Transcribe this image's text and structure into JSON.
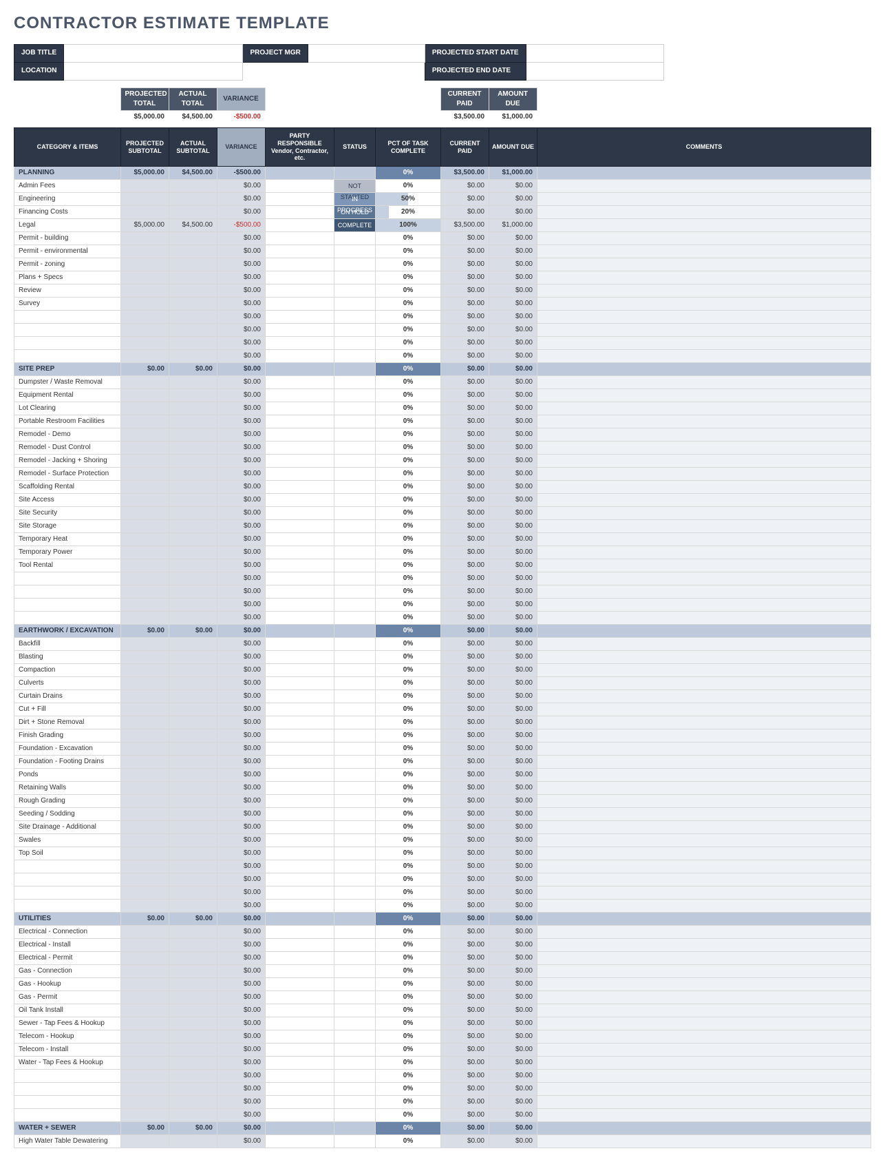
{
  "title": "CONTRACTOR ESTIMATE TEMPLATE",
  "info_labels": {
    "job_title": "JOB TITLE",
    "location": "LOCATION",
    "project_mgr": "PROJECT MGR",
    "start_date": "PROJECTED START DATE",
    "end_date": "PROJECTED END DATE"
  },
  "info_values": {
    "job_title": "",
    "location": "",
    "project_mgr": "",
    "start_date": "",
    "end_date": ""
  },
  "summary_headers": {
    "projected_total": "PROJECTED TOTAL",
    "actual_total": "ACTUAL TOTAL",
    "variance": "VARIANCE",
    "current_paid": "CURRENT PAID",
    "amount_due": "AMOUNT DUE"
  },
  "summary_values": {
    "projected_total": "$5,000.00",
    "actual_total": "$4,500.00",
    "variance": "-$500.00",
    "current_paid": "$3,500.00",
    "amount_due": "$1,000.00"
  },
  "columns": {
    "category": "CATEGORY & ITEMS",
    "proj_sub": "PROJECTED SUBTOTAL",
    "act_sub": "ACTUAL SUBTOTAL",
    "variance": "VARIANCE",
    "party": "PARTY RESPONSIBLE Vendor, Contractor, etc.",
    "status": "STATUS",
    "pct": "PCT OF TASK COMPLETE",
    "paid": "CURRENT PAID",
    "due": "AMOUNT DUE",
    "comments": "COMMENTS"
  },
  "colors": {
    "header_dark": "#2d3748",
    "header_mid": "#4a5568",
    "header_light": "#a0aec0",
    "cat_row": "#becadb",
    "cat_pct": "#6b85a8",
    "shade": "#d8dde6",
    "comments": "#eef1f6",
    "border": "#d8d8d8",
    "neg": "#c53030"
  },
  "sections": [
    {
      "name": "PLANNING",
      "proj": "$5,000.00",
      "act": "$4,500.00",
      "var": "-$500.00",
      "pct": "0%",
      "paid": "$3,500.00",
      "due": "$1,000.00",
      "items": [
        {
          "name": "Admin Fees",
          "var": "$0.00",
          "status": "NOT STARTED",
          "pct": "0%",
          "pct_val": 0,
          "paid": "$0.00",
          "due": "$0.00"
        },
        {
          "name": "Engineering",
          "var": "$0.00",
          "status": "IN PROGRESS",
          "pct": "50%",
          "pct_val": 50,
          "paid": "$0.00",
          "due": "$0.00"
        },
        {
          "name": "Financing Costs",
          "var": "$0.00",
          "status": "ON HOLD",
          "pct": "20%",
          "pct_val": 20,
          "paid": "$0.00",
          "due": "$0.00"
        },
        {
          "name": "Legal",
          "proj": "$5,000.00",
          "act": "$4,500.00",
          "var": "-$500.00",
          "status": "COMPLETE",
          "pct": "100%",
          "pct_val": 100,
          "paid": "$3,500.00",
          "due": "$1,000.00"
        },
        {
          "name": "Permit - building",
          "var": "$0.00",
          "pct": "0%",
          "paid": "$0.00",
          "due": "$0.00"
        },
        {
          "name": "Permit - environmental",
          "var": "$0.00",
          "pct": "0%",
          "paid": "$0.00",
          "due": "$0.00"
        },
        {
          "name": "Permit - zoning",
          "var": "$0.00",
          "pct": "0%",
          "paid": "$0.00",
          "due": "$0.00"
        },
        {
          "name": "Plans + Specs",
          "var": "$0.00",
          "pct": "0%",
          "paid": "$0.00",
          "due": "$0.00"
        },
        {
          "name": "Review",
          "var": "$0.00",
          "pct": "0%",
          "paid": "$0.00",
          "due": "$0.00"
        },
        {
          "name": "Survey",
          "var": "$0.00",
          "pct": "0%",
          "paid": "$0.00",
          "due": "$0.00"
        },
        {
          "name": "",
          "var": "$0.00",
          "pct": "0%",
          "paid": "$0.00",
          "due": "$0.00"
        },
        {
          "name": "",
          "var": "$0.00",
          "pct": "0%",
          "paid": "$0.00",
          "due": "$0.00"
        },
        {
          "name": "",
          "var": "$0.00",
          "pct": "0%",
          "paid": "$0.00",
          "due": "$0.00"
        },
        {
          "name": "",
          "var": "$0.00",
          "pct": "0%",
          "paid": "$0.00",
          "due": "$0.00"
        }
      ]
    },
    {
      "name": "SITE PREP",
      "proj": "$0.00",
      "act": "$0.00",
      "var": "$0.00",
      "pct": "0%",
      "paid": "$0.00",
      "due": "$0.00",
      "items": [
        {
          "name": "Dumpster / Waste Removal",
          "var": "$0.00",
          "pct": "0%",
          "paid": "$0.00",
          "due": "$0.00"
        },
        {
          "name": "Equipment Rental",
          "var": "$0.00",
          "pct": "0%",
          "paid": "$0.00",
          "due": "$0.00"
        },
        {
          "name": "Lot Clearing",
          "var": "$0.00",
          "pct": "0%",
          "paid": "$0.00",
          "due": "$0.00"
        },
        {
          "name": "Portable Restroom Facilities",
          "var": "$0.00",
          "pct": "0%",
          "paid": "$0.00",
          "due": "$0.00"
        },
        {
          "name": "Remodel - Demo",
          "var": "$0.00",
          "pct": "0%",
          "paid": "$0.00",
          "due": "$0.00"
        },
        {
          "name": "Remodel - Dust Control",
          "var": "$0.00",
          "pct": "0%",
          "paid": "$0.00",
          "due": "$0.00"
        },
        {
          "name": "Remodel - Jacking + Shoring",
          "var": "$0.00",
          "pct": "0%",
          "paid": "$0.00",
          "due": "$0.00"
        },
        {
          "name": "Remodel - Surface Protection",
          "var": "$0.00",
          "pct": "0%",
          "paid": "$0.00",
          "due": "$0.00"
        },
        {
          "name": "Scaffolding Rental",
          "var": "$0.00",
          "pct": "0%",
          "paid": "$0.00",
          "due": "$0.00"
        },
        {
          "name": "Site Access",
          "var": "$0.00",
          "pct": "0%",
          "paid": "$0.00",
          "due": "$0.00"
        },
        {
          "name": "Site Security",
          "var": "$0.00",
          "pct": "0%",
          "paid": "$0.00",
          "due": "$0.00"
        },
        {
          "name": "Site Storage",
          "var": "$0.00",
          "pct": "0%",
          "paid": "$0.00",
          "due": "$0.00"
        },
        {
          "name": "Temporary Heat",
          "var": "$0.00",
          "pct": "0%",
          "paid": "$0.00",
          "due": "$0.00"
        },
        {
          "name": "Temporary Power",
          "var": "$0.00",
          "pct": "0%",
          "paid": "$0.00",
          "due": "$0.00"
        },
        {
          "name": "Tool Rental",
          "var": "$0.00",
          "pct": "0%",
          "paid": "$0.00",
          "due": "$0.00"
        },
        {
          "name": "",
          "var": "$0.00",
          "pct": "0%",
          "paid": "$0.00",
          "due": "$0.00"
        },
        {
          "name": "",
          "var": "$0.00",
          "pct": "0%",
          "paid": "$0.00",
          "due": "$0.00"
        },
        {
          "name": "",
          "var": "$0.00",
          "pct": "0%",
          "paid": "$0.00",
          "due": "$0.00"
        },
        {
          "name": "",
          "var": "$0.00",
          "pct": "0%",
          "paid": "$0.00",
          "due": "$0.00"
        }
      ]
    },
    {
      "name": "EARTHWORK / EXCAVATION",
      "proj": "$0.00",
      "act": "$0.00",
      "var": "$0.00",
      "pct": "0%",
      "paid": "$0.00",
      "due": "$0.00",
      "items": [
        {
          "name": "Backfill",
          "var": "$0.00",
          "pct": "0%",
          "paid": "$0.00",
          "due": "$0.00"
        },
        {
          "name": "Blasting",
          "var": "$0.00",
          "pct": "0%",
          "paid": "$0.00",
          "due": "$0.00"
        },
        {
          "name": "Compaction",
          "var": "$0.00",
          "pct": "0%",
          "paid": "$0.00",
          "due": "$0.00"
        },
        {
          "name": "Culverts",
          "var": "$0.00",
          "pct": "0%",
          "paid": "$0.00",
          "due": "$0.00"
        },
        {
          "name": "Curtain Drains",
          "var": "$0.00",
          "pct": "0%",
          "paid": "$0.00",
          "due": "$0.00"
        },
        {
          "name": "Cut + Fill",
          "var": "$0.00",
          "pct": "0%",
          "paid": "$0.00",
          "due": "$0.00"
        },
        {
          "name": "Dirt + Stone Removal",
          "var": "$0.00",
          "pct": "0%",
          "paid": "$0.00",
          "due": "$0.00"
        },
        {
          "name": "Finish Grading",
          "var": "$0.00",
          "pct": "0%",
          "paid": "$0.00",
          "due": "$0.00"
        },
        {
          "name": "Foundation - Excavation",
          "var": "$0.00",
          "pct": "0%",
          "paid": "$0.00",
          "due": "$0.00"
        },
        {
          "name": "Foundation - Footing Drains",
          "var": "$0.00",
          "pct": "0%",
          "paid": "$0.00",
          "due": "$0.00"
        },
        {
          "name": "Ponds",
          "var": "$0.00",
          "pct": "0%",
          "paid": "$0.00",
          "due": "$0.00"
        },
        {
          "name": "Retaining Walls",
          "var": "$0.00",
          "pct": "0%",
          "paid": "$0.00",
          "due": "$0.00"
        },
        {
          "name": "Rough Grading",
          "var": "$0.00",
          "pct": "0%",
          "paid": "$0.00",
          "due": "$0.00"
        },
        {
          "name": "Seeding / Sodding",
          "var": "$0.00",
          "pct": "0%",
          "paid": "$0.00",
          "due": "$0.00"
        },
        {
          "name": "Site Drainage - Additional",
          "var": "$0.00",
          "pct": "0%",
          "paid": "$0.00",
          "due": "$0.00"
        },
        {
          "name": "Swales",
          "var": "$0.00",
          "pct": "0%",
          "paid": "$0.00",
          "due": "$0.00"
        },
        {
          "name": "Top Soil",
          "var": "$0.00",
          "pct": "0%",
          "paid": "$0.00",
          "due": "$0.00"
        },
        {
          "name": "",
          "var": "$0.00",
          "pct": "0%",
          "paid": "$0.00",
          "due": "$0.00"
        },
        {
          "name": "",
          "var": "$0.00",
          "pct": "0%",
          "paid": "$0.00",
          "due": "$0.00"
        },
        {
          "name": "",
          "var": "$0.00",
          "pct": "0%",
          "paid": "$0.00",
          "due": "$0.00"
        },
        {
          "name": "",
          "var": "$0.00",
          "pct": "0%",
          "paid": "$0.00",
          "due": "$0.00"
        }
      ]
    },
    {
      "name": "UTILITIES",
      "proj": "$0.00",
      "act": "$0.00",
      "var": "$0.00",
      "pct": "0%",
      "paid": "$0.00",
      "due": "$0.00",
      "items": [
        {
          "name": "Electrical - Connection",
          "var": "$0.00",
          "pct": "0%",
          "paid": "$0.00",
          "due": "$0.00"
        },
        {
          "name": "Electrical - Install",
          "var": "$0.00",
          "pct": "0%",
          "paid": "$0.00",
          "due": "$0.00"
        },
        {
          "name": "Electrical - Permit",
          "var": "$0.00",
          "pct": "0%",
          "paid": "$0.00",
          "due": "$0.00"
        },
        {
          "name": "Gas - Connection",
          "var": "$0.00",
          "pct": "0%",
          "paid": "$0.00",
          "due": "$0.00"
        },
        {
          "name": "Gas - Hookup",
          "var": "$0.00",
          "pct": "0%",
          "paid": "$0.00",
          "due": "$0.00"
        },
        {
          "name": "Gas - Permit",
          "var": "$0.00",
          "pct": "0%",
          "paid": "$0.00",
          "due": "$0.00"
        },
        {
          "name": "Oil Tank Install",
          "var": "$0.00",
          "pct": "0%",
          "paid": "$0.00",
          "due": "$0.00"
        },
        {
          "name": "Sewer - Tap Fees & Hookup",
          "var": "$0.00",
          "pct": "0%",
          "paid": "$0.00",
          "due": "$0.00"
        },
        {
          "name": "Telecom - Hookup",
          "var": "$0.00",
          "pct": "0%",
          "paid": "$0.00",
          "due": "$0.00"
        },
        {
          "name": "Telecom - Install",
          "var": "$0.00",
          "pct": "0%",
          "paid": "$0.00",
          "due": "$0.00"
        },
        {
          "name": "Water - Tap Fees & Hookup",
          "var": "$0.00",
          "pct": "0%",
          "paid": "$0.00",
          "due": "$0.00"
        },
        {
          "name": "",
          "var": "$0.00",
          "pct": "0%",
          "paid": "$0.00",
          "due": "$0.00"
        },
        {
          "name": "",
          "var": "$0.00",
          "pct": "0%",
          "paid": "$0.00",
          "due": "$0.00"
        },
        {
          "name": "",
          "var": "$0.00",
          "pct": "0%",
          "paid": "$0.00",
          "due": "$0.00"
        },
        {
          "name": "",
          "var": "$0.00",
          "pct": "0%",
          "paid": "$0.00",
          "due": "$0.00"
        }
      ]
    },
    {
      "name": "WATER + SEWER",
      "proj": "$0.00",
      "act": "$0.00",
      "var": "$0.00",
      "pct": "0%",
      "paid": "$0.00",
      "due": "$0.00",
      "items": [
        {
          "name": "High Water Table Dewatering",
          "var": "$0.00",
          "pct": "0%",
          "paid": "$0.00",
          "due": "$0.00"
        }
      ]
    }
  ]
}
